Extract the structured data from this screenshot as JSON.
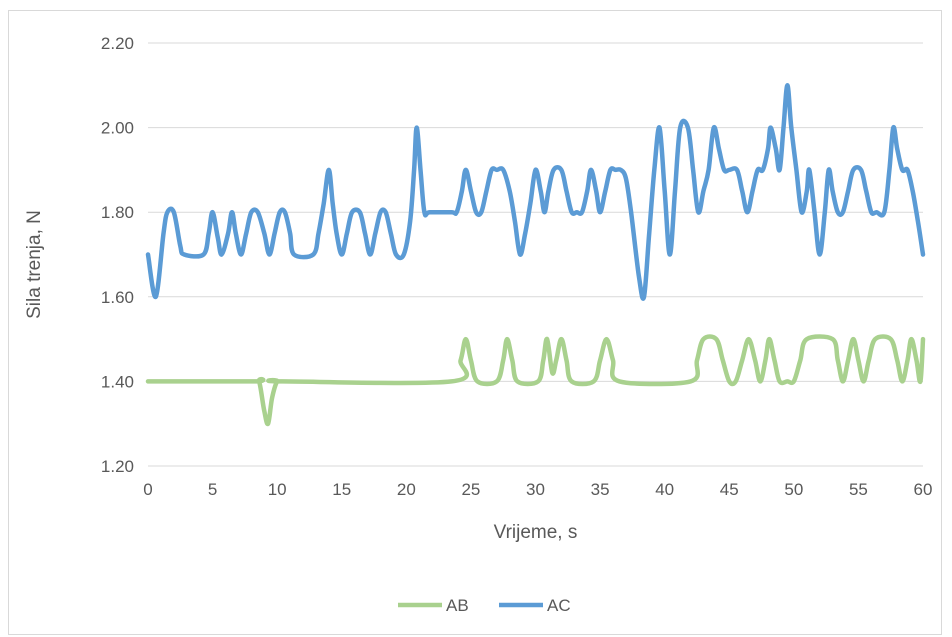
{
  "chart_data": {
    "type": "line",
    "title": "",
    "xlabel": "Vrijeme, s",
    "ylabel": "Sila trenja, N",
    "xlim": [
      0,
      60
    ],
    "ylim": [
      1.2,
      2.2
    ],
    "x_ticks": [
      0,
      5,
      10,
      15,
      20,
      25,
      30,
      35,
      40,
      45,
      50,
      55,
      60
    ],
    "y_ticks": [
      "1.20",
      "1.40",
      "1.60",
      "1.80",
      "2.00",
      "2.20"
    ],
    "grid": "horizontal",
    "legend_position": "bottom",
    "series": [
      {
        "name": "AB",
        "color": "#a9d18e",
        "points": [
          [
            0,
            1.4
          ],
          [
            8.2,
            1.4
          ],
          [
            8.6,
            1.4
          ],
          [
            9.0,
            1.33
          ],
          [
            9.3,
            1.3
          ],
          [
            9.6,
            1.36
          ],
          [
            10.0,
            1.4
          ],
          [
            10.4,
            1.4
          ],
          [
            23.5,
            1.4
          ],
          [
            24.2,
            1.45
          ],
          [
            24.6,
            1.5
          ],
          [
            25.0,
            1.45
          ],
          [
            25.5,
            1.4
          ],
          [
            27.0,
            1.4
          ],
          [
            27.5,
            1.45
          ],
          [
            27.8,
            1.5
          ],
          [
            28.2,
            1.45
          ],
          [
            28.6,
            1.4
          ],
          [
            30.2,
            1.4
          ],
          [
            30.6,
            1.45
          ],
          [
            30.9,
            1.5
          ],
          [
            31.3,
            1.42
          ],
          [
            31.6,
            1.45
          ],
          [
            32.0,
            1.5
          ],
          [
            32.4,
            1.45
          ],
          [
            32.8,
            1.4
          ],
          [
            34.5,
            1.4
          ],
          [
            35.0,
            1.45
          ],
          [
            35.5,
            1.5
          ],
          [
            36.0,
            1.45
          ],
          [
            36.5,
            1.4
          ],
          [
            42.0,
            1.4
          ],
          [
            42.5,
            1.45
          ],
          [
            43.0,
            1.5
          ],
          [
            44.0,
            1.5
          ],
          [
            44.5,
            1.45
          ],
          [
            45.0,
            1.4
          ],
          [
            45.5,
            1.4
          ],
          [
            46.0,
            1.45
          ],
          [
            46.5,
            1.5
          ],
          [
            47.0,
            1.45
          ],
          [
            47.4,
            1.4
          ],
          [
            47.8,
            1.45
          ],
          [
            48.1,
            1.5
          ],
          [
            48.5,
            1.45
          ],
          [
            48.9,
            1.4
          ],
          [
            49.5,
            1.4
          ],
          [
            50.0,
            1.4
          ],
          [
            50.5,
            1.45
          ],
          [
            51.0,
            1.5
          ],
          [
            53.0,
            1.5
          ],
          [
            53.4,
            1.45
          ],
          [
            53.8,
            1.4
          ],
          [
            54.2,
            1.45
          ],
          [
            54.6,
            1.5
          ],
          [
            55.0,
            1.45
          ],
          [
            55.4,
            1.4
          ],
          [
            55.8,
            1.45
          ],
          [
            56.3,
            1.5
          ],
          [
            57.5,
            1.5
          ],
          [
            58.0,
            1.45
          ],
          [
            58.4,
            1.4
          ],
          [
            58.8,
            1.45
          ],
          [
            59.1,
            1.5
          ],
          [
            59.5,
            1.45
          ],
          [
            59.8,
            1.4
          ],
          [
            60,
            1.5
          ]
        ]
      },
      {
        "name": "AC",
        "color": "#5b9bd5",
        "points": [
          [
            0,
            1.7
          ],
          [
            0.6,
            1.6
          ],
          [
            1.2,
            1.75
          ],
          [
            1.5,
            1.8
          ],
          [
            2.0,
            1.8
          ],
          [
            2.5,
            1.72
          ],
          [
            2.8,
            1.7
          ],
          [
            4.3,
            1.7
          ],
          [
            4.7,
            1.75
          ],
          [
            5.0,
            1.8
          ],
          [
            5.4,
            1.74
          ],
          [
            5.7,
            1.7
          ],
          [
            6.2,
            1.75
          ],
          [
            6.5,
            1.8
          ],
          [
            6.8,
            1.75
          ],
          [
            7.2,
            1.7
          ],
          [
            7.6,
            1.75
          ],
          [
            8.0,
            1.8
          ],
          [
            8.5,
            1.8
          ],
          [
            9.0,
            1.75
          ],
          [
            9.4,
            1.7
          ],
          [
            9.8,
            1.75
          ],
          [
            10.2,
            1.8
          ],
          [
            10.6,
            1.8
          ],
          [
            11.0,
            1.75
          ],
          [
            11.3,
            1.7
          ],
          [
            12.8,
            1.7
          ],
          [
            13.2,
            1.75
          ],
          [
            13.6,
            1.82
          ],
          [
            14.0,
            1.9
          ],
          [
            14.3,
            1.82
          ],
          [
            14.6,
            1.75
          ],
          [
            15.0,
            1.7
          ],
          [
            15.4,
            1.75
          ],
          [
            15.8,
            1.8
          ],
          [
            16.4,
            1.8
          ],
          [
            16.8,
            1.75
          ],
          [
            17.2,
            1.7
          ],
          [
            17.6,
            1.75
          ],
          [
            18.0,
            1.8
          ],
          [
            18.4,
            1.8
          ],
          [
            18.8,
            1.75
          ],
          [
            19.2,
            1.7
          ],
          [
            19.8,
            1.7
          ],
          [
            20.3,
            1.78
          ],
          [
            20.6,
            1.9
          ],
          [
            20.8,
            2.0
          ],
          [
            21.1,
            1.9
          ],
          [
            21.4,
            1.8
          ],
          [
            21.8,
            1.8
          ],
          [
            23.5,
            1.8
          ],
          [
            23.9,
            1.8
          ],
          [
            24.3,
            1.85
          ],
          [
            24.6,
            1.9
          ],
          [
            25.0,
            1.85
          ],
          [
            25.4,
            1.8
          ],
          [
            25.8,
            1.8
          ],
          [
            26.2,
            1.85
          ],
          [
            26.6,
            1.9
          ],
          [
            27.0,
            1.9
          ],
          [
            27.5,
            1.9
          ],
          [
            28.0,
            1.85
          ],
          [
            28.4,
            1.78
          ],
          [
            28.8,
            1.7
          ],
          [
            29.2,
            1.75
          ],
          [
            29.6,
            1.82
          ],
          [
            30.0,
            1.9
          ],
          [
            30.4,
            1.85
          ],
          [
            30.7,
            1.8
          ],
          [
            31.0,
            1.85
          ],
          [
            31.4,
            1.9
          ],
          [
            32.0,
            1.9
          ],
          [
            32.4,
            1.85
          ],
          [
            32.8,
            1.8
          ],
          [
            33.2,
            1.8
          ],
          [
            33.6,
            1.8
          ],
          [
            34.0,
            1.85
          ],
          [
            34.3,
            1.9
          ],
          [
            34.7,
            1.85
          ],
          [
            35.0,
            1.8
          ],
          [
            35.4,
            1.85
          ],
          [
            35.8,
            1.9
          ],
          [
            36.2,
            1.9
          ],
          [
            36.6,
            1.9
          ],
          [
            37.0,
            1.88
          ],
          [
            37.4,
            1.8
          ],
          [
            38.0,
            1.65
          ],
          [
            38.4,
            1.6
          ],
          [
            38.8,
            1.75
          ],
          [
            39.2,
            1.9
          ],
          [
            39.6,
            2.0
          ],
          [
            40.0,
            1.85
          ],
          [
            40.4,
            1.7
          ],
          [
            40.8,
            1.85
          ],
          [
            41.2,
            2.0
          ],
          [
            41.8,
            2.0
          ],
          [
            42.2,
            1.9
          ],
          [
            42.6,
            1.8
          ],
          [
            43.0,
            1.85
          ],
          [
            43.4,
            1.9
          ],
          [
            43.8,
            2.0
          ],
          [
            44.2,
            1.95
          ],
          [
            44.6,
            1.9
          ],
          [
            45.0,
            1.9
          ],
          [
            45.6,
            1.9
          ],
          [
            46.0,
            1.85
          ],
          [
            46.4,
            1.8
          ],
          [
            46.8,
            1.85
          ],
          [
            47.2,
            1.9
          ],
          [
            47.6,
            1.9
          ],
          [
            48.0,
            1.95
          ],
          [
            48.2,
            2.0
          ],
          [
            48.6,
            1.95
          ],
          [
            48.9,
            1.9
          ],
          [
            49.2,
            2.0
          ],
          [
            49.5,
            2.1
          ],
          [
            49.8,
            2.0
          ],
          [
            50.2,
            1.9
          ],
          [
            50.6,
            1.8
          ],
          [
            51.0,
            1.85
          ],
          [
            51.2,
            1.9
          ],
          [
            51.6,
            1.8
          ],
          [
            52.0,
            1.7
          ],
          [
            52.4,
            1.8
          ],
          [
            52.7,
            1.9
          ],
          [
            53.0,
            1.85
          ],
          [
            53.4,
            1.8
          ],
          [
            53.8,
            1.8
          ],
          [
            54.2,
            1.85
          ],
          [
            54.6,
            1.9
          ],
          [
            55.2,
            1.9
          ],
          [
            55.6,
            1.85
          ],
          [
            56.0,
            1.8
          ],
          [
            56.4,
            1.8
          ],
          [
            57.0,
            1.8
          ],
          [
            57.4,
            1.9
          ],
          [
            57.7,
            2.0
          ],
          [
            58.0,
            1.95
          ],
          [
            58.4,
            1.9
          ],
          [
            58.8,
            1.9
          ],
          [
            59.2,
            1.85
          ],
          [
            59.6,
            1.78
          ],
          [
            60,
            1.7
          ]
        ]
      }
    ]
  }
}
